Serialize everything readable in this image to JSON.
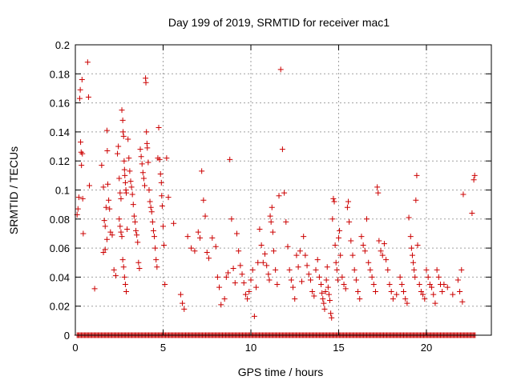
{
  "chart_data": {
    "type": "scatter",
    "title": "Day 199 of 2019, SRMTID for receiver mac1",
    "xlabel": "GPS time / hours",
    "ylabel": "SRMTID / TECUs",
    "xlim": [
      0,
      23.7
    ],
    "ylim": [
      0,
      0.2
    ],
    "x_ticks": [
      0,
      5,
      10,
      15,
      20
    ],
    "x_tick_labels": [
      "0",
      "5",
      "10",
      "15",
      "20"
    ],
    "y_ticks": [
      0,
      0.02,
      0.04,
      0.06,
      0.08,
      0.1,
      0.12,
      0.14,
      0.16,
      0.18,
      0.2
    ],
    "y_tick_labels": [
      "0",
      "0.02",
      "0.04",
      "0.06",
      "0.08",
      "0.1",
      "0.12",
      "0.14",
      "0.16",
      "0.18",
      "0.2"
    ],
    "grid": true,
    "marker": "+",
    "color": "#cc0000",
    "series": [
      {
        "name": "SRMTID",
        "points": [
          [
            0.1,
            0.083
          ],
          [
            0.15,
            0.087
          ],
          [
            0.2,
            0.095
          ],
          [
            0.25,
            0.163
          ],
          [
            0.28,
            0.169
          ],
          [
            0.3,
            0.133
          ],
          [
            0.33,
            0.126
          ],
          [
            0.35,
            0.117
          ],
          [
            0.38,
            0.176
          ],
          [
            0.4,
            0.125
          ],
          [
            0.42,
            0.094
          ],
          [
            0.45,
            0.07
          ],
          [
            0.7,
            0.188
          ],
          [
            0.75,
            0.164
          ],
          [
            0.8,
            0.103
          ],
          [
            1.1,
            0.032
          ],
          [
            1.5,
            0.117
          ],
          [
            1.6,
            0.102
          ],
          [
            1.65,
            0.079
          ],
          [
            1.7,
            0.075
          ],
          [
            1.75,
            0.088
          ],
          [
            1.8,
            0.141
          ],
          [
            1.82,
            0.127
          ],
          [
            1.85,
            0.104
          ],
          [
            1.9,
            0.093
          ],
          [
            1.95,
            0.087
          ],
          [
            1.6,
            0.057
          ],
          [
            1.7,
            0.059
          ],
          [
            1.8,
            0.066
          ],
          [
            2.0,
            0.071
          ],
          [
            2.1,
            0.069
          ],
          [
            2.2,
            0.045
          ],
          [
            2.3,
            0.041
          ],
          [
            2.4,
            0.125
          ],
          [
            2.45,
            0.13
          ],
          [
            2.5,
            0.108
          ],
          [
            2.55,
            0.098
          ],
          [
            2.6,
            0.094
          ],
          [
            2.65,
            0.155
          ],
          [
            2.7,
            0.148
          ],
          [
            2.72,
            0.14
          ],
          [
            2.75,
            0.137
          ],
          [
            2.78,
            0.12
          ],
          [
            2.8,
            0.114
          ],
          [
            2.82,
            0.11
          ],
          [
            2.85,
            0.105
          ],
          [
            2.88,
            0.1
          ],
          [
            2.9,
            0.098
          ],
          [
            2.5,
            0.08
          ],
          [
            2.55,
            0.075
          ],
          [
            2.6,
            0.071
          ],
          [
            2.65,
            0.068
          ],
          [
            2.7,
            0.052
          ],
          [
            2.75,
            0.047
          ],
          [
            2.8,
            0.04
          ],
          [
            2.85,
            0.035
          ],
          [
            2.9,
            0.03
          ],
          [
            2.95,
            0.073
          ],
          [
            3.0,
            0.135
          ],
          [
            3.05,
            0.122
          ],
          [
            3.1,
            0.113
          ],
          [
            3.15,
            0.106
          ],
          [
            3.2,
            0.102
          ],
          [
            3.25,
            0.097
          ],
          [
            3.3,
            0.09
          ],
          [
            3.35,
            0.082
          ],
          [
            3.4,
            0.078
          ],
          [
            3.45,
            0.072
          ],
          [
            3.5,
            0.069
          ],
          [
            3.55,
            0.064
          ],
          [
            3.6,
            0.05
          ],
          [
            3.65,
            0.046
          ],
          [
            3.7,
            0.128
          ],
          [
            3.75,
            0.123
          ],
          [
            3.8,
            0.118
          ],
          [
            3.85,
            0.112
          ],
          [
            3.9,
            0.108
          ],
          [
            3.95,
            0.103
          ],
          [
            4.0,
            0.177
          ],
          [
            4.02,
            0.174
          ],
          [
            4.05,
            0.14
          ],
          [
            4.08,
            0.132
          ],
          [
            4.1,
            0.129
          ],
          [
            4.15,
            0.119
          ],
          [
            4.2,
            0.1
          ],
          [
            4.25,
            0.092
          ],
          [
            4.3,
            0.088
          ],
          [
            4.35,
            0.085
          ],
          [
            4.4,
            0.078
          ],
          [
            4.45,
            0.072
          ],
          [
            4.5,
            0.068
          ],
          [
            4.55,
            0.06
          ],
          [
            4.6,
            0.052
          ],
          [
            4.65,
            0.047
          ],
          [
            4.7,
            0.122
          ],
          [
            4.75,
            0.143
          ],
          [
            4.8,
            0.121
          ],
          [
            4.85,
            0.111
          ],
          [
            4.9,
            0.105
          ],
          [
            4.92,
            0.096
          ],
          [
            4.95,
            0.089
          ],
          [
            5.0,
            0.075
          ],
          [
            5.05,
            0.062
          ],
          [
            5.1,
            0.035
          ],
          [
            5.2,
            0.122
          ],
          [
            5.3,
            0.095
          ],
          [
            5.6,
            0.077
          ],
          [
            6.0,
            0.028
          ],
          [
            6.1,
            0.022
          ],
          [
            6.2,
            0.018
          ],
          [
            6.4,
            0.068
          ],
          [
            6.6,
            0.06
          ],
          [
            6.8,
            0.058
          ],
          [
            7.0,
            0.071
          ],
          [
            7.1,
            0.067
          ],
          [
            7.2,
            0.113
          ],
          [
            7.3,
            0.093
          ],
          [
            7.4,
            0.082
          ],
          [
            7.5,
            0.057
          ],
          [
            7.6,
            0.053
          ],
          [
            7.8,
            0.067
          ],
          [
            8.0,
            0.061
          ],
          [
            8.1,
            0.04
          ],
          [
            8.2,
            0.033
          ],
          [
            8.3,
            0.021
          ],
          [
            8.5,
            0.025
          ],
          [
            8.6,
            0.04
          ],
          [
            8.7,
            0.043
          ],
          [
            8.8,
            0.121
          ],
          [
            8.9,
            0.08
          ],
          [
            9.0,
            0.046
          ],
          [
            9.1,
            0.036
          ],
          [
            9.2,
            0.07
          ],
          [
            9.3,
            0.058
          ],
          [
            9.4,
            0.048
          ],
          [
            9.5,
            0.042
          ],
          [
            9.6,
            0.036
          ],
          [
            9.7,
            0.028
          ],
          [
            9.8,
            0.025
          ],
          [
            9.9,
            0.03
          ],
          [
            10.0,
            0.038
          ],
          [
            10.1,
            0.045
          ],
          [
            10.2,
            0.013
          ],
          [
            10.3,
            0.033
          ],
          [
            10.4,
            0.05
          ],
          [
            10.5,
            0.073
          ],
          [
            10.6,
            0.062
          ],
          [
            10.7,
            0.05
          ],
          [
            10.8,
            0.056
          ],
          [
            10.9,
            0.048
          ],
          [
            11.0,
            0.042
          ],
          [
            11.05,
            0.038
          ],
          [
            11.1,
            0.082
          ],
          [
            11.15,
            0.078
          ],
          [
            11.2,
            0.088
          ],
          [
            11.25,
            0.071
          ],
          [
            11.3,
            0.058
          ],
          [
            11.4,
            0.045
          ],
          [
            11.5,
            0.035
          ],
          [
            11.6,
            0.096
          ],
          [
            11.7,
            0.183
          ],
          [
            11.8,
            0.128
          ],
          [
            11.9,
            0.098
          ],
          [
            12.0,
            0.078
          ],
          [
            12.1,
            0.061
          ],
          [
            12.2,
            0.045
          ],
          [
            12.3,
            0.038
          ],
          [
            12.4,
            0.033
          ],
          [
            12.5,
            0.025
          ],
          [
            12.6,
            0.055
          ],
          [
            12.7,
            0.047
          ],
          [
            12.8,
            0.058
          ],
          [
            12.9,
            0.037
          ],
          [
            13.0,
            0.068
          ],
          [
            13.1,
            0.055
          ],
          [
            13.2,
            0.048
          ],
          [
            13.3,
            0.042
          ],
          [
            13.4,
            0.038
          ],
          [
            13.5,
            0.03
          ],
          [
            13.6,
            0.027
          ],
          [
            13.7,
            0.045
          ],
          [
            13.8,
            0.052
          ],
          [
            13.9,
            0.04
          ],
          [
            14.0,
            0.035
          ],
          [
            14.05,
            0.029
          ],
          [
            14.1,
            0.025
          ],
          [
            14.15,
            0.022
          ],
          [
            14.2,
            0.018
          ],
          [
            14.25,
            0.03
          ],
          [
            14.3,
            0.038
          ],
          [
            14.35,
            0.047
          ],
          [
            14.4,
            0.033
          ],
          [
            14.45,
            0.028
          ],
          [
            14.5,
            0.024
          ],
          [
            14.55,
            0.015
          ],
          [
            14.6,
            0.012
          ],
          [
            14.65,
            0.08
          ],
          [
            14.7,
            0.094
          ],
          [
            14.75,
            0.092
          ],
          [
            14.8,
            0.062
          ],
          [
            14.85,
            0.05
          ],
          [
            14.9,
            0.045
          ],
          [
            14.95,
            0.038
          ],
          [
            15.0,
            0.067
          ],
          [
            15.05,
            0.072
          ],
          [
            15.1,
            0.055
          ],
          [
            15.2,
            0.04
          ],
          [
            15.3,
            0.035
          ],
          [
            15.4,
            0.032
          ],
          [
            15.5,
            0.088
          ],
          [
            15.55,
            0.092
          ],
          [
            15.6,
            0.078
          ],
          [
            15.7,
            0.065
          ],
          [
            15.8,
            0.055
          ],
          [
            15.9,
            0.045
          ],
          [
            16.0,
            0.038
          ],
          [
            16.1,
            0.03
          ],
          [
            16.2,
            0.025
          ],
          [
            16.3,
            0.068
          ],
          [
            16.4,
            0.062
          ],
          [
            16.5,
            0.058
          ],
          [
            16.6,
            0.08
          ],
          [
            16.7,
            0.05
          ],
          [
            16.8,
            0.045
          ],
          [
            16.9,
            0.04
          ],
          [
            17.0,
            0.035
          ],
          [
            17.1,
            0.03
          ],
          [
            17.2,
            0.102
          ],
          [
            17.25,
            0.098
          ],
          [
            17.3,
            0.065
          ],
          [
            17.4,
            0.058
          ],
          [
            17.5,
            0.055
          ],
          [
            17.6,
            0.063
          ],
          [
            17.7,
            0.052
          ],
          [
            17.8,
            0.045
          ],
          [
            17.9,
            0.035
          ],
          [
            18.0,
            0.03
          ],
          [
            18.1,
            0.025
          ],
          [
            18.3,
            0.028
          ],
          [
            18.5,
            0.04
          ],
          [
            18.6,
            0.035
          ],
          [
            18.7,
            0.03
          ],
          [
            18.8,
            0.025
          ],
          [
            18.9,
            0.022
          ],
          [
            19.0,
            0.081
          ],
          [
            19.1,
            0.068
          ],
          [
            19.15,
            0.06
          ],
          [
            19.2,
            0.055
          ],
          [
            19.25,
            0.05
          ],
          [
            19.3,
            0.045
          ],
          [
            19.35,
            0.04
          ],
          [
            19.4,
            0.093
          ],
          [
            19.45,
            0.11
          ],
          [
            19.5,
            0.062
          ],
          [
            19.6,
            0.035
          ],
          [
            19.7,
            0.03
          ],
          [
            19.8,
            0.028
          ],
          [
            19.9,
            0.025
          ],
          [
            20.0,
            0.045
          ],
          [
            20.1,
            0.04
          ],
          [
            20.2,
            0.035
          ],
          [
            20.3,
            0.033
          ],
          [
            20.4,
            0.028
          ],
          [
            20.5,
            0.022
          ],
          [
            20.6,
            0.045
          ],
          [
            20.7,
            0.04
          ],
          [
            20.8,
            0.035
          ],
          [
            20.9,
            0.03
          ],
          [
            21.0,
            0.035
          ],
          [
            21.2,
            0.033
          ],
          [
            21.5,
            0.028
          ],
          [
            21.8,
            0.038
          ],
          [
            21.9,
            0.03
          ],
          [
            22.0,
            0.045
          ],
          [
            22.05,
            0.023
          ],
          [
            22.1,
            0.097
          ],
          [
            22.6,
            0.084
          ],
          [
            22.7,
            0.107
          ],
          [
            22.75,
            0.11
          ]
        ]
      }
    ],
    "baseline_zero_x_range": [
      0.1,
      22.8
    ]
  }
}
